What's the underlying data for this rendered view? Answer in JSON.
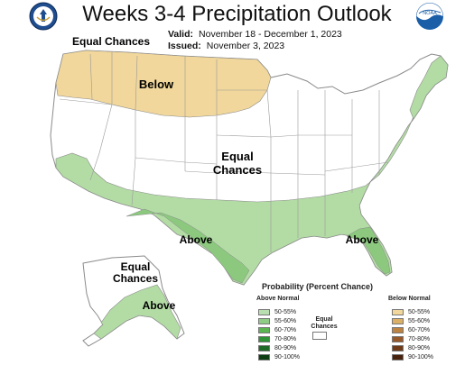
{
  "title": "Weeks 3-4 Precipitation Outlook",
  "valid": {
    "label": "Valid:",
    "value": "November 18 - December 1, 2023"
  },
  "issued": {
    "label": "Issued:",
    "value": "November 3, 2023"
  },
  "logos": {
    "left": "doc-seal-icon",
    "right": "noaa-logo-icon",
    "noaa_text": "NOAA"
  },
  "map_labels": {
    "nw_equal": "Equal Chances",
    "below": "Below",
    "central_equal": "Equal Chances",
    "above_south": "Above",
    "above_se": "Above",
    "ak_equal": "Equal Chances",
    "ak_above": "Above"
  },
  "colors": {
    "below_50_55": "#f1d79b",
    "above_50_55": "#b3dca5",
    "above_55_60": "#8cc97f",
    "equal": "#ffffff",
    "border": "#8a8a8a"
  },
  "legend": {
    "title": "Probability (Percent Chance)",
    "above_header": "Above Normal",
    "below_header": "Below Normal",
    "equal_label": "Equal Chances",
    "above": [
      {
        "label": "50-55%",
        "color": "#b9dfb0"
      },
      {
        "label": "55-60%",
        "color": "#8fcc85"
      },
      {
        "label": "60-70%",
        "color": "#5bb651"
      },
      {
        "label": "70-80%",
        "color": "#2f9436"
      },
      {
        "label": "80-90%",
        "color": "#1e6b26"
      },
      {
        "label": "90-100%",
        "color": "#0e3f14"
      }
    ],
    "below": [
      {
        "label": "50-55%",
        "color": "#f1d79b"
      },
      {
        "label": "55-60%",
        "color": "#dbb066"
      },
      {
        "label": "60-70%",
        "color": "#bd8342"
      },
      {
        "label": "70-80%",
        "color": "#98592a"
      },
      {
        "label": "80-90%",
        "color": "#6f3a18"
      },
      {
        "label": "90-100%",
        "color": "#47210c"
      }
    ]
  }
}
